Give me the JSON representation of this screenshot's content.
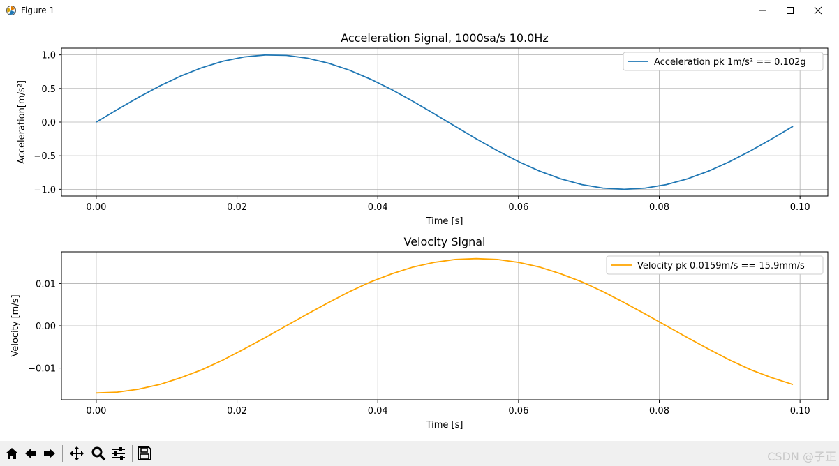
{
  "window": {
    "title": "Figure 1"
  },
  "toolbar": {
    "buttons": [
      "home-icon",
      "back-icon",
      "forward-icon",
      "pan-icon",
      "zoom-icon",
      "subplots-config-icon",
      "save-icon"
    ]
  },
  "watermark": "CSDN @子正",
  "chart_data": [
    {
      "type": "line",
      "title": "Acceleration Signal, 1000sa/s 10.0Hz",
      "xlabel": "Time [s]",
      "ylabel": "Acceleration[m/s²]",
      "xlim": [
        -0.00495,
        0.10395
      ],
      "ylim": [
        -1.1,
        1.1
      ],
      "xticks": [
        0.0,
        0.02,
        0.04,
        0.06,
        0.08,
        0.1
      ],
      "xtick_labels": [
        "0.00",
        "0.02",
        "0.04",
        "0.06",
        "0.08",
        "0.10"
      ],
      "yticks": [
        -1.0,
        -0.5,
        0.0,
        0.5,
        1.0
      ],
      "ytick_labels": [
        "−1.0",
        "−0.5",
        "0.0",
        "0.5",
        "1.0"
      ],
      "grid": true,
      "legend_position": "top-right",
      "series": [
        {
          "name": "Acceleration  pk 1m/s² == 0.102g",
          "color": "#1f77b4",
          "x": [
            0.0,
            0.003,
            0.006,
            0.009,
            0.012,
            0.015,
            0.018,
            0.021,
            0.024,
            0.027,
            0.03,
            0.033,
            0.036,
            0.039,
            0.042,
            0.045,
            0.048,
            0.051,
            0.054,
            0.057,
            0.06,
            0.063,
            0.066,
            0.069,
            0.072,
            0.075,
            0.078,
            0.081,
            0.084,
            0.087,
            0.09,
            0.093,
            0.096,
            0.099
          ],
          "y": [
            0.0,
            0.187,
            0.368,
            0.536,
            0.685,
            0.809,
            0.905,
            0.969,
            0.998,
            0.992,
            0.951,
            0.876,
            0.771,
            0.637,
            0.482,
            0.309,
            0.125,
            -0.063,
            -0.249,
            -0.426,
            -0.588,
            -0.729,
            -0.844,
            -0.93,
            -0.982,
            -1.0,
            -0.982,
            -0.93,
            -0.844,
            -0.729,
            -0.588,
            -0.426,
            -0.249,
            -0.063
          ]
        }
      ]
    },
    {
      "type": "line",
      "title": "Velocity Signal",
      "xlabel": "Time [s]",
      "ylabel": "Velocity [m/s]",
      "xlim": [
        -0.00495,
        0.10395
      ],
      "ylim": [
        -0.0175,
        0.0175
      ],
      "xticks": [
        0.0,
        0.02,
        0.04,
        0.06,
        0.08,
        0.1
      ],
      "xtick_labels": [
        "0.00",
        "0.02",
        "0.04",
        "0.06",
        "0.08",
        "0.10"
      ],
      "yticks": [
        -0.01,
        0.0,
        0.01
      ],
      "ytick_labels": [
        "−0.01",
        "0.00",
        "0.01"
      ],
      "grid": true,
      "legend_position": "top-right",
      "series": [
        {
          "name": "Velocity  pk 0.0159m/s == 15.9mm/s",
          "color": "#ffa500",
          "x": [
            0.0,
            0.003,
            0.006,
            0.009,
            0.012,
            0.015,
            0.018,
            0.021,
            0.024,
            0.027,
            0.03,
            0.033,
            0.036,
            0.039,
            0.042,
            0.045,
            0.048,
            0.051,
            0.054,
            0.057,
            0.06,
            0.063,
            0.066,
            0.069,
            0.072,
            0.075,
            0.078,
            0.081,
            0.084,
            0.087,
            0.09,
            0.093,
            0.096,
            0.099
          ],
          "y": [
            -0.0159,
            -0.0157,
            -0.015,
            -0.0139,
            -0.0123,
            -0.0104,
            -0.0081,
            -0.0055,
            -0.0028,
            0.0,
            0.0028,
            0.0055,
            0.0081,
            0.0104,
            0.0123,
            0.0139,
            0.015,
            0.0157,
            0.0159,
            0.0157,
            0.015,
            0.0139,
            0.0123,
            0.0104,
            0.0081,
            0.0055,
            0.0028,
            0.0,
            -0.0028,
            -0.0055,
            -0.0081,
            -0.0104,
            -0.0123,
            -0.0139
          ]
        }
      ]
    }
  ]
}
